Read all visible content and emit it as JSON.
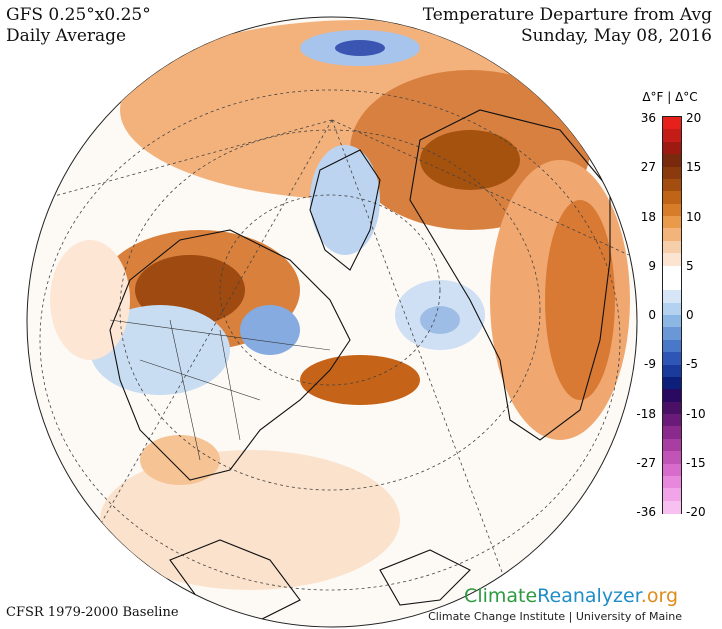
{
  "header": {
    "model": "GFS 0.25°x0.25°",
    "period": "Daily Average",
    "title": "Temperature Departure from Avg",
    "date": "Sunday, May 08, 2016"
  },
  "footer": {
    "baseline": "CFSR 1979-2000 Baseline",
    "brand_part1": "Climate",
    "brand_part2": "Reanalyzer",
    "brand_part3": ".org",
    "institution": "Climate Change Institute | University of Maine"
  },
  "legend": {
    "title": "Δ°F  |  Δ°C",
    "fahrenheit_ticks": [
      "36",
      "27",
      "18",
      "9",
      "0",
      "-9",
      "-18",
      "-27",
      "-36"
    ],
    "celsius_ticks": [
      "20",
      "15",
      "10",
      "5",
      "0",
      "-5",
      "-10",
      "-15",
      "-20"
    ],
    "colors": [
      "#e8201c",
      "#c41d17",
      "#9e1a10",
      "#7a2a0c",
      "#8a3a0c",
      "#a34d10",
      "#c06518",
      "#d77d2a",
      "#e99a4a",
      "#f2b47a",
      "#f7ceaa",
      "#fbe4d2",
      "#ffffff",
      "#ffffff",
      "#d6e6f6",
      "#b4d2ef",
      "#8cb6e4",
      "#6a98d6",
      "#4a78c8",
      "#2e56b6",
      "#1a3a9c",
      "#0c1f7a",
      "#2a0a60",
      "#4a1066",
      "#6a1a78",
      "#8a2a8c",
      "#a83ea2",
      "#c254b8",
      "#d86ccc",
      "#e888dc",
      "#f2a4e8",
      "#f8c0f0"
    ]
  }
}
